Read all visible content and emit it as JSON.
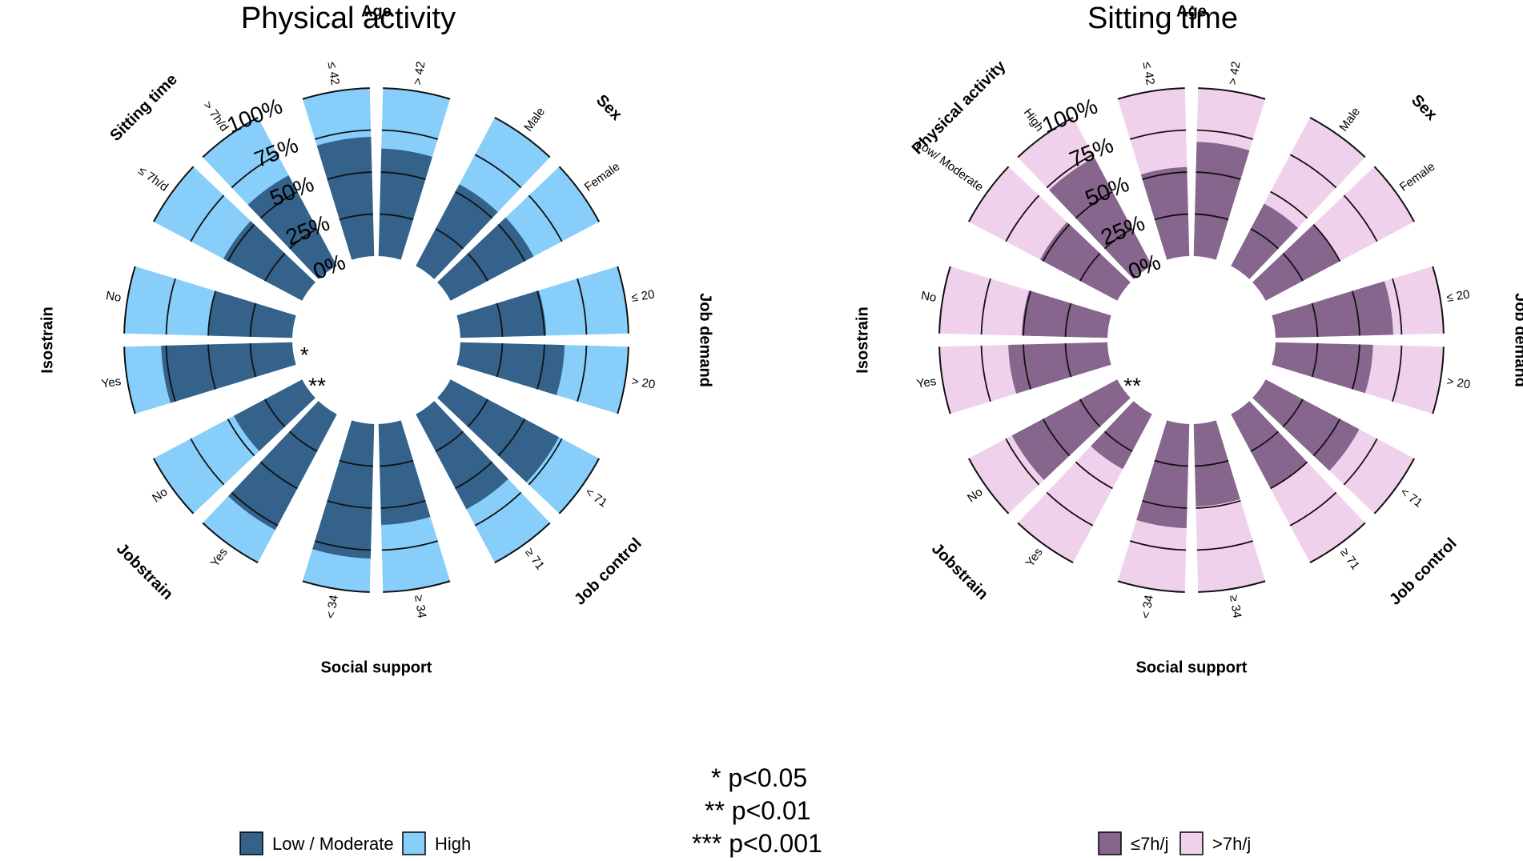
{
  "notes": [
    "* p<0.05",
    "** p<0.01",
    "*** p<0.001"
  ],
  "chart_data": [
    {
      "type": "circular stacked bar",
      "title": "Physical activity",
      "ticks": [
        "0%",
        "25%",
        "50%",
        "75%",
        "100%"
      ],
      "legend": [
        {
          "name": "Low / Moderate",
          "color": "#34628A"
        },
        {
          "name": "High",
          "color": "#87CEFA"
        }
      ],
      "groups": [
        {
          "name": "Age",
          "bars": [
            {
              "label": "≤ 42",
              "value": 71,
              "sig": ""
            },
            {
              "label": "> 42",
              "value": 64,
              "sig": ""
            }
          ]
        },
        {
          "name": "Sex",
          "bars": [
            {
              "label": "Male",
              "value": 55,
              "sig": ""
            },
            {
              "label": "Female",
              "value": 56,
              "sig": ""
            }
          ]
        },
        {
          "name": "Job demand",
          "bars": [
            {
              "label": "≤ 20",
              "value": 51,
              "sig": ""
            },
            {
              "label": "> 20",
              "value": 62,
              "sig": ""
            }
          ]
        },
        {
          "name": "Job control",
          "bars": [
            {
              "label": "< 71",
              "value": 73,
              "sig": ""
            },
            {
              "label": "≥ 71",
              "value": 64,
              "sig": ""
            }
          ]
        },
        {
          "name": "Social support",
          "bars": [
            {
              "label": "≥ 34",
              "value": 60,
              "sig": ""
            },
            {
              "label": "< 34",
              "value": 80,
              "sig": ""
            }
          ]
        },
        {
          "name": "Jobstrain",
          "bars": [
            {
              "label": "Yes",
              "value": 78,
              "sig": ""
            },
            {
              "label": "No",
              "value": 46,
              "sig": "**"
            }
          ]
        },
        {
          "name": "Isostrain",
          "bars": [
            {
              "label": "Yes",
              "value": 78,
              "sig": "*"
            },
            {
              "label": "No",
              "value": 50,
              "sig": ""
            }
          ]
        },
        {
          "name": "Sitting time",
          "bars": [
            {
              "label": "≤ 7h/d",
              "value": 53,
              "sig": ""
            },
            {
              "label": "> 7h/d",
              "value": 61,
              "sig": ""
            }
          ]
        }
      ]
    },
    {
      "type": "circular stacked bar",
      "title": "Sitting time",
      "ticks": [
        "0%",
        "25%",
        "50%",
        "75%",
        "100%"
      ],
      "legend": [
        {
          "name": "≤7h/j",
          "color": "#86668D"
        },
        {
          "name": ">7h/j",
          "color": "#F0D1EC"
        }
      ],
      "groups": [
        {
          "name": "Age",
          "bars": [
            {
              "label": "≤ 42",
              "value": 53,
              "sig": ""
            },
            {
              "label": "> 42",
              "value": 68,
              "sig": ""
            }
          ]
        },
        {
          "name": "Sex",
          "bars": [
            {
              "label": "Male",
              "value": 42,
              "sig": ""
            },
            {
              "label": "Female",
              "value": 50,
              "sig": ""
            }
          ]
        },
        {
          "name": "Job demand",
          "bars": [
            {
              "label": "≤ 20",
              "value": 70,
              "sig": ""
            },
            {
              "label": "> 20",
              "value": 58,
              "sig": ""
            }
          ]
        },
        {
          "name": "Job control",
          "bars": [
            {
              "label": "< 71",
              "value": 63,
              "sig": ""
            },
            {
              "label": "≥ 71",
              "value": 50,
              "sig": ""
            }
          ]
        },
        {
          "name": "Social support",
          "bars": [
            {
              "label": "≥ 34",
              "value": 49,
              "sig": ""
            },
            {
              "label": "< 34",
              "value": 62,
              "sig": ""
            }
          ]
        },
        {
          "name": "Jobstrain",
          "bars": [
            {
              "label": "Yes",
              "value": 37,
              "sig": ""
            },
            {
              "label": "No",
              "value": 71,
              "sig": "**"
            }
          ]
        },
        {
          "name": "Isostrain",
          "bars": [
            {
              "label": "Yes",
              "value": 59,
              "sig": ""
            },
            {
              "label": "No",
              "value": 51,
              "sig": ""
            }
          ]
        },
        {
          "name": "Physical activity",
          "bars": [
            {
              "label": "Low/ Moderate",
              "value": 52,
              "sig": ""
            },
            {
              "label": "High",
              "value": 73,
              "sig": ""
            }
          ]
        }
      ]
    }
  ]
}
